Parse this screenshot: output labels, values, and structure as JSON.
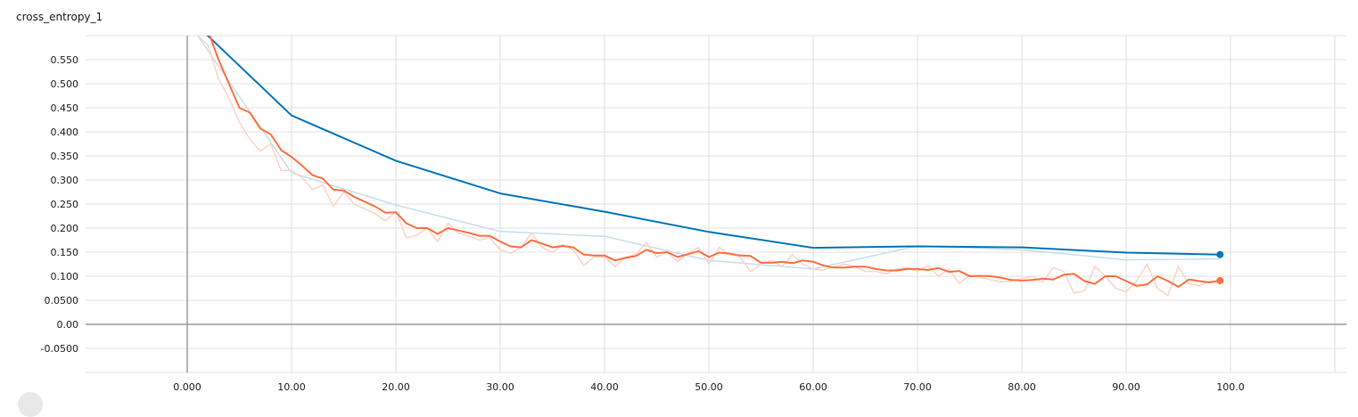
{
  "chart_data": {
    "type": "line",
    "title": "cross_entropy_1",
    "xlabel": "",
    "ylabel": "",
    "xlim": [
      -10,
      110
    ],
    "ylim": [
      -0.1,
      0.6
    ],
    "x_ticks": [
      "0.000",
      "10.00",
      "20.00",
      "30.00",
      "40.00",
      "50.00",
      "60.00",
      "70.00",
      "80.00",
      "90.00",
      "100.0"
    ],
    "x_tick_values": [
      0,
      10,
      20,
      30,
      40,
      50,
      60,
      70,
      80,
      90,
      100
    ],
    "y_ticks": [
      "-0.0500",
      "0.00",
      "0.0500",
      "0.100",
      "0.150",
      "0.200",
      "0.250",
      "0.300",
      "0.350",
      "0.400",
      "0.450",
      "0.500",
      "0.550"
    ],
    "y_tick_values": [
      -0.05,
      0,
      0.05,
      0.1,
      0.15,
      0.2,
      0.25,
      0.3,
      0.35,
      0.4,
      0.45,
      0.5,
      0.55
    ],
    "grid": true,
    "series": [
      {
        "color": "#0077bb",
        "raw_color": "#c6dfee",
        "smoothed": {
          "x": [
            1,
            10,
            20,
            30,
            40,
            50,
            60,
            70,
            80,
            90,
            99
          ],
          "y": [
            0.62,
            0.434,
            0.34,
            0.272,
            0.234,
            0.192,
            0.159,
            0.162,
            0.16,
            0.149,
            0.145
          ]
        },
        "raw": {
          "x": [
            1,
            10,
            20,
            30,
            40,
            50,
            60,
            70,
            80,
            90,
            99
          ],
          "y": [
            0.6,
            0.315,
            0.248,
            0.193,
            0.183,
            0.133,
            0.115,
            0.163,
            0.155,
            0.134,
            0.136
          ]
        }
      },
      {
        "color": "#ff7043",
        "raw_color": "#fbd4c6",
        "smoothed": {
          "x": [
            2,
            3,
            4,
            5,
            6,
            7,
            8,
            9,
            10,
            11,
            12,
            13,
            14,
            15,
            16,
            17,
            18,
            19,
            20,
            21,
            22,
            23,
            24,
            25,
            26,
            27,
            28,
            29,
            30,
            31,
            32,
            33,
            34,
            35,
            36,
            37,
            38,
            39,
            40,
            41,
            42,
            43,
            44,
            45,
            46,
            47,
            48,
            49,
            50,
            51,
            52,
            53,
            54,
            55,
            56,
            57,
            58,
            59,
            60,
            61,
            62,
            63,
            64,
            65,
            66,
            67,
            68,
            69,
            70,
            71,
            72,
            73,
            74,
            75,
            76,
            77,
            78,
            79,
            80,
            81,
            82,
            83,
            84,
            85,
            86,
            87,
            88,
            89,
            90,
            91,
            92,
            93,
            94,
            95,
            96,
            97,
            98,
            99
          ],
          "y": [
            0.61,
            0.55,
            0.5,
            0.45,
            0.44,
            0.407,
            0.395,
            0.362,
            0.348,
            0.33,
            0.31,
            0.303,
            0.28,
            0.278,
            0.265,
            0.255,
            0.245,
            0.232,
            0.233,
            0.21,
            0.2,
            0.2,
            0.188,
            0.2,
            0.195,
            0.19,
            0.184,
            0.184,
            0.172,
            0.162,
            0.16,
            0.175,
            0.168,
            0.16,
            0.163,
            0.16,
            0.145,
            0.143,
            0.143,
            0.133,
            0.138,
            0.142,
            0.155,
            0.148,
            0.15,
            0.14,
            0.146,
            0.152,
            0.14,
            0.149,
            0.147,
            0.143,
            0.142,
            0.128,
            0.128,
            0.13,
            0.127,
            0.133,
            0.13,
            0.122,
            0.118,
            0.118,
            0.12,
            0.12,
            0.115,
            0.112,
            0.112,
            0.115,
            0.115,
            0.113,
            0.117,
            0.109,
            0.111,
            0.1,
            0.101,
            0.1,
            0.097,
            0.092,
            0.091,
            0.092,
            0.095,
            0.093,
            0.103,
            0.105,
            0.09,
            0.084,
            0.1,
            0.1,
            0.09,
            0.08,
            0.083,
            0.1,
            0.09,
            0.078,
            0.093,
            0.09,
            0.087,
            0.091
          ]
        },
        "raw": {
          "x": [
            1,
            2,
            3,
            4,
            5,
            6,
            7,
            8,
            9,
            10,
            11,
            12,
            13,
            14,
            15,
            16,
            17,
            18,
            19,
            20,
            21,
            22,
            23,
            24,
            25,
            26,
            27,
            28,
            29,
            30,
            31,
            32,
            33,
            34,
            35,
            36,
            37,
            38,
            39,
            40,
            41,
            42,
            43,
            44,
            45,
            46,
            47,
            48,
            49,
            50,
            51,
            52,
            53,
            54,
            55,
            56,
            57,
            58,
            59,
            60,
            61,
            62,
            63,
            64,
            65,
            66,
            67,
            68,
            69,
            70,
            71,
            72,
            73,
            74,
            75,
            76,
            77,
            78,
            79,
            80,
            81,
            82,
            83,
            84,
            85,
            86,
            87,
            88,
            89,
            90,
            91,
            92,
            93,
            94,
            95,
            96,
            97,
            98,
            99
          ],
          "y": [
            0.6,
            0.58,
            0.51,
            0.47,
            0.42,
            0.385,
            0.36,
            0.375,
            0.32,
            0.32,
            0.305,
            0.28,
            0.29,
            0.245,
            0.275,
            0.25,
            0.24,
            0.23,
            0.215,
            0.235,
            0.18,
            0.185,
            0.2,
            0.172,
            0.21,
            0.19,
            0.183,
            0.175,
            0.18,
            0.155,
            0.148,
            0.16,
            0.19,
            0.16,
            0.15,
            0.165,
            0.155,
            0.123,
            0.14,
            0.14,
            0.12,
            0.14,
            0.145,
            0.17,
            0.14,
            0.15,
            0.13,
            0.147,
            0.16,
            0.125,
            0.16,
            0.145,
            0.14,
            0.11,
            0.125,
            0.133,
            0.12,
            0.145,
            0.125,
            0.115,
            0.113,
            0.12,
            0.125,
            0.12,
            0.11,
            0.11,
            0.105,
            0.115,
            0.118,
            0.11,
            0.122,
            0.1,
            0.115,
            0.085,
            0.102,
            0.098,
            0.093,
            0.088,
            0.09,
            0.095,
            0.1,
            0.088,
            0.118,
            0.11,
            0.065,
            0.07,
            0.12,
            0.1,
            0.075,
            0.068,
            0.09,
            0.125,
            0.075,
            0.06,
            0.12,
            0.085,
            0.08,
            0.09,
            0.09
          ]
        }
      }
    ]
  }
}
